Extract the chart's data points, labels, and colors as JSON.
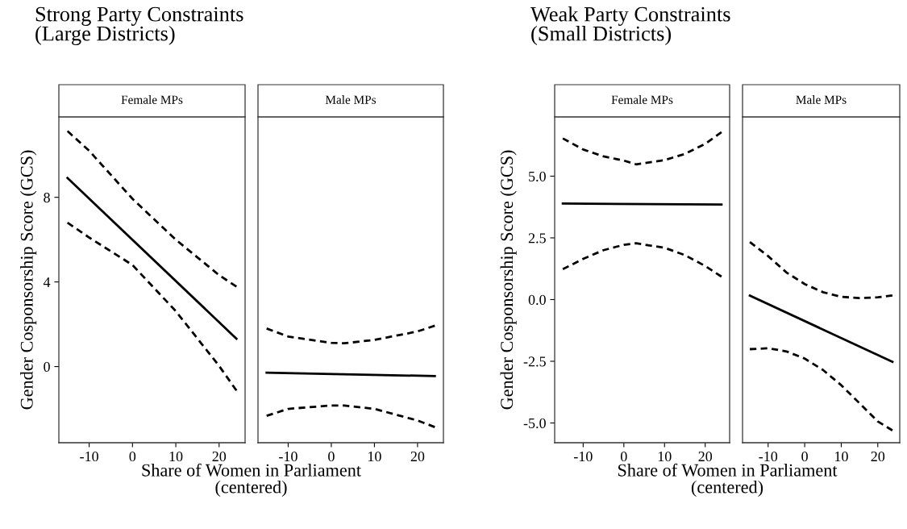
{
  "chart_data": [
    {
      "type": "line",
      "title": "Strong Party Constraints\n(Large Districts)",
      "subtitle": "Female MPs",
      "xlabel": "Share of Women in Parliament\n(centered)",
      "ylabel": "Gender Cosponsorship Score (GCS)",
      "grid": false,
      "xlim": [
        -17,
        26
      ],
      "xticks": [
        -10,
        0,
        10,
        20
      ],
      "ylim": [
        -3.6,
        11.8
      ],
      "yticks": [
        0,
        4,
        8
      ],
      "series": [
        {
          "color": "#000000",
          "line_style": "solid",
          "x": [
            -15,
            24
          ],
          "values": [
            8.91,
            1.32
          ]
        },
        {
          "color": "#000000",
          "line_style": "dashed",
          "x": [
            -15,
            -10,
            0,
            10,
            20,
            24
          ],
          "values": [
            11.13,
            10.2,
            7.93,
            6.0,
            4.32,
            3.78
          ]
        },
        {
          "color": "#000000",
          "line_style": "dashed",
          "x": [
            -15,
            -10,
            0,
            10,
            20,
            24
          ],
          "values": [
            6.8,
            6.1,
            4.8,
            2.62,
            0.03,
            -1.13
          ]
        }
      ]
    },
    {
      "type": "line",
      "subtitle": "Male MPs",
      "tick_labels": "x",
      "grid": false,
      "xlim": [
        -17,
        26
      ],
      "xticks": [
        -10,
        0,
        10,
        20
      ],
      "ylim": [
        -3.6,
        11.8
      ],
      "series": [
        {
          "color": "#000000",
          "line_style": "solid",
          "x": [
            -15,
            24
          ],
          "values": [
            -0.29,
            -0.45
          ]
        },
        {
          "color": "#000000",
          "line_style": "dashed",
          "x": [
            -15,
            -10,
            0,
            3,
            10,
            20,
            24
          ],
          "values": [
            1.8,
            1.42,
            1.12,
            1.1,
            1.26,
            1.66,
            1.93
          ]
        },
        {
          "color": "#000000",
          "line_style": "dashed",
          "x": [
            -15,
            -10,
            0,
            3,
            10,
            20,
            24
          ],
          "values": [
            -2.33,
            -2.0,
            -1.84,
            -1.84,
            -2.0,
            -2.55,
            -2.86
          ]
        }
      ]
    },
    {
      "type": "line",
      "title": "Weak Party Constraints\n(Small Districts)",
      "subtitle": "Female MPs",
      "xlabel": "Share of Women in Parliament\n(centered)",
      "ylabel": "Gender Cosponsorship Score (GCS)",
      "grid": false,
      "xlim": [
        -17,
        26
      ],
      "xticks": [
        -10,
        0,
        10,
        20
      ],
      "ylim": [
        -5.8,
        7.4
      ],
      "yticks": [
        {
          "value": -5,
          "label": "-5.0"
        },
        {
          "value": -2.5,
          "label": "-2.5"
        },
        {
          "value": 0,
          "label": "0.0"
        },
        {
          "value": 2.5,
          "label": "2.5"
        },
        {
          "value": 5,
          "label": "5.0"
        }
      ],
      "series": [
        {
          "color": "#000000",
          "line_style": "solid",
          "x": [
            -15,
            24
          ],
          "values": [
            3.89,
            3.85
          ]
        },
        {
          "color": "#000000",
          "line_style": "dashed",
          "x": [
            -15,
            -10,
            -5,
            0,
            3,
            10,
            15,
            20,
            24
          ],
          "values": [
            6.53,
            6.08,
            5.8,
            5.63,
            5.48,
            5.65,
            5.9,
            6.31,
            6.78
          ]
        },
        {
          "color": "#000000",
          "line_style": "dashed",
          "x": [
            -15,
            -10,
            -5,
            0,
            3,
            10,
            15,
            20,
            24
          ],
          "values": [
            1.23,
            1.65,
            2.0,
            2.22,
            2.28,
            2.1,
            1.8,
            1.36,
            0.93
          ]
        }
      ]
    },
    {
      "type": "line",
      "subtitle": "Male MPs",
      "tick_labels": "x",
      "grid": false,
      "xlim": [
        -17,
        26
      ],
      "xticks": [
        -10,
        0,
        10,
        20
      ],
      "ylim": [
        -5.8,
        7.4
      ],
      "series": [
        {
          "color": "#000000",
          "line_style": "solid",
          "x": [
            -15,
            24
          ],
          "values": [
            0.16,
            -2.52
          ]
        },
        {
          "color": "#000000",
          "line_style": "dashed",
          "x": [
            -15,
            -10,
            -5,
            0,
            5,
            10,
            15,
            20,
            24
          ],
          "values": [
            2.33,
            1.76,
            1.1,
            0.63,
            0.3,
            0.11,
            0.06,
            0.09,
            0.17
          ]
        },
        {
          "color": "#000000",
          "line_style": "dashed",
          "x": [
            -15,
            -10,
            -5,
            0,
            5,
            10,
            15,
            20,
            24
          ],
          "values": [
            -2.01,
            -1.97,
            -2.1,
            -2.39,
            -2.85,
            -3.47,
            -4.2,
            -4.94,
            -5.3
          ]
        }
      ]
    }
  ]
}
